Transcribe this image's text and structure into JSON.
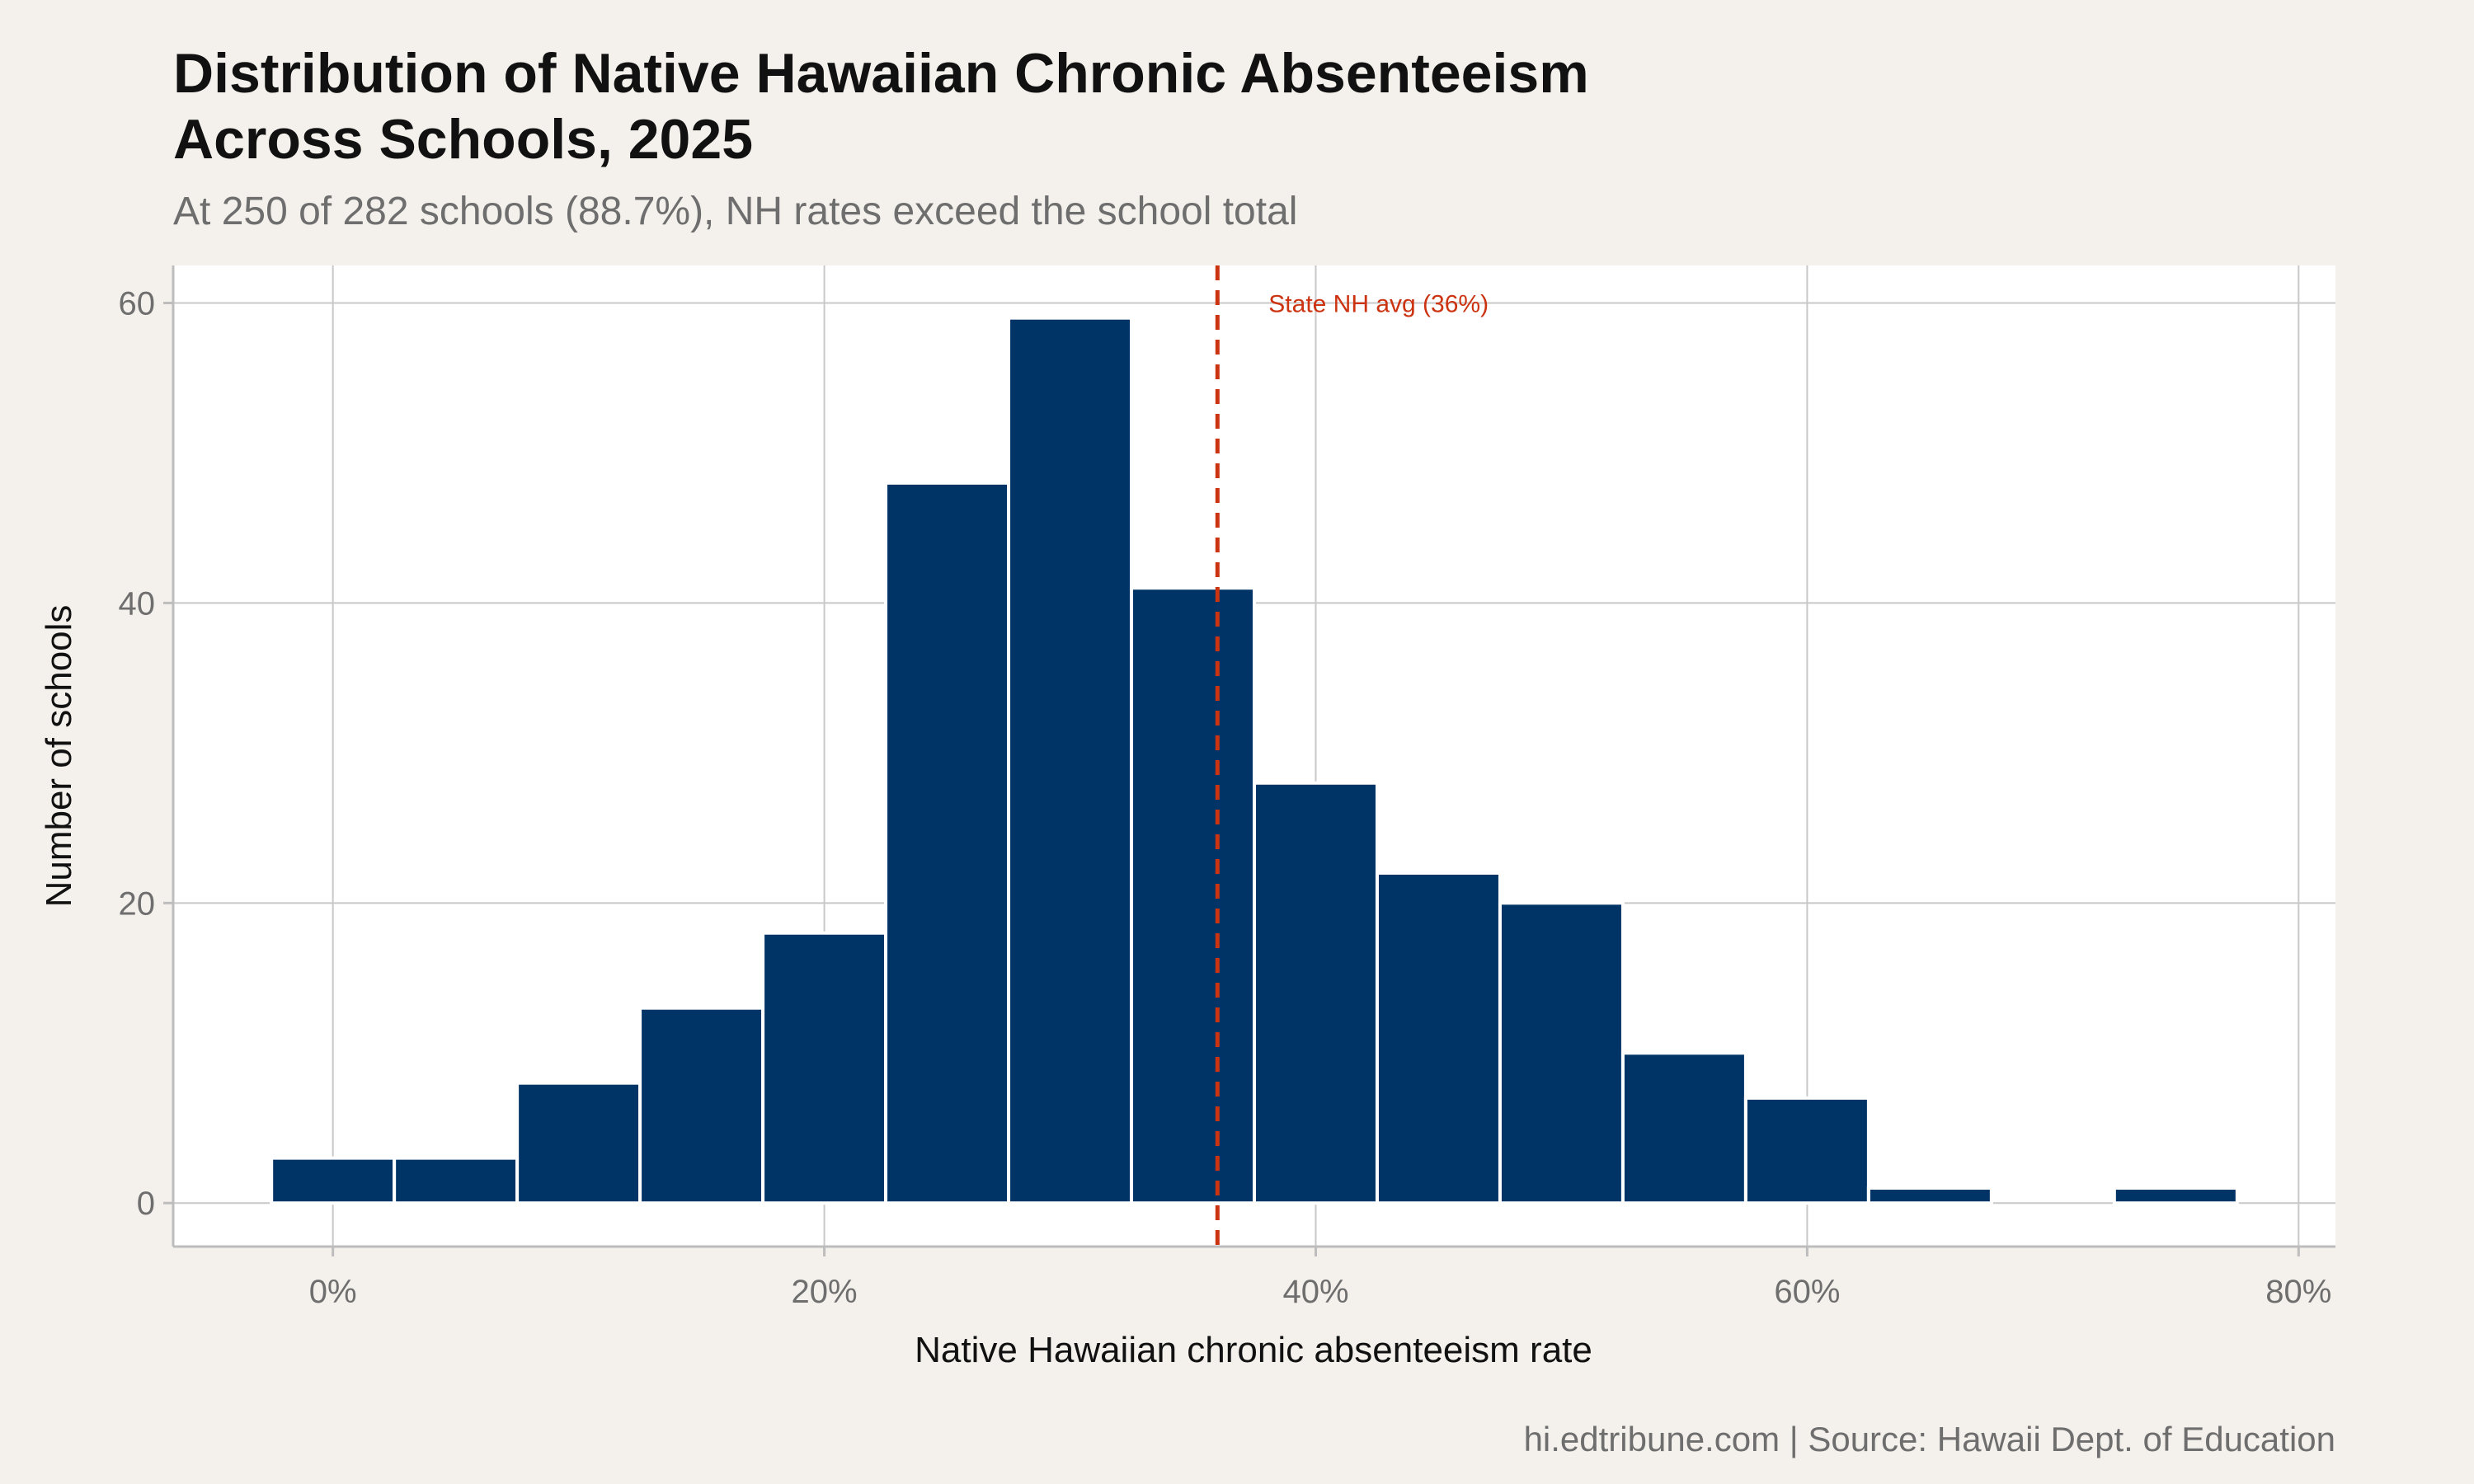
{
  "chart_data": {
    "type": "bar",
    "title_lines": [
      "Distribution of Native Hawaiian Chronic Absenteeism",
      "Across Schools, 2025"
    ],
    "subtitle": "At 250 of 282 schools (88.7%), NH rates exceed the school total",
    "xlabel": "Native Hawaiian chronic absenteeism rate",
    "ylabel": "Number of schools",
    "caption": "hi.edtribune.com | Source: Hawaii Dept. of Education",
    "bin_width": 5,
    "x_unit": "%",
    "bins": [
      {
        "start": -2.5,
        "end": 2.5,
        "count": 3
      },
      {
        "start": 2.5,
        "end": 7.5,
        "count": 3
      },
      {
        "start": 7.5,
        "end": 12.5,
        "count": 8
      },
      {
        "start": 12.5,
        "end": 17.5,
        "count": 13
      },
      {
        "start": 17.5,
        "end": 22.5,
        "count": 18
      },
      {
        "start": 22.5,
        "end": 27.5,
        "count": 48
      },
      {
        "start": 27.5,
        "end": 32.5,
        "count": 59
      },
      {
        "start": 32.5,
        "end": 37.5,
        "count": 41
      },
      {
        "start": 37.5,
        "end": 42.5,
        "count": 28
      },
      {
        "start": 42.5,
        "end": 47.5,
        "count": 22
      },
      {
        "start": 47.5,
        "end": 52.5,
        "count": 20
      },
      {
        "start": 52.5,
        "end": 57.5,
        "count": 10
      },
      {
        "start": 57.5,
        "end": 62.5,
        "count": 7
      },
      {
        "start": 62.5,
        "end": 67.5,
        "count": 1
      },
      {
        "start": 67.5,
        "end": 72.5,
        "count": 0
      },
      {
        "start": 72.5,
        "end": 77.5,
        "count": 1
      }
    ],
    "xlim": [
      -6.5,
      81.5
    ],
    "ylim": [
      -2.9,
      62.5
    ],
    "x_ticks": [
      0,
      20,
      40,
      60,
      80
    ],
    "x_tick_labels": [
      "0%",
      "20%",
      "40%",
      "60%",
      "80%"
    ],
    "y_ticks": [
      0,
      20,
      40,
      60
    ],
    "y_tick_labels": [
      "0",
      "20",
      "40",
      "60"
    ],
    "grid": true,
    "reference_line": {
      "x": 36,
      "label": "State NH avg (36%)",
      "style": "dashed"
    },
    "colors": {
      "bar": "#003366",
      "bar_edge": "#ffffff",
      "reference": "#cc3311",
      "panel": "#ffffff",
      "background": "#f4f1ec",
      "grid": "#c8c8c8"
    }
  }
}
